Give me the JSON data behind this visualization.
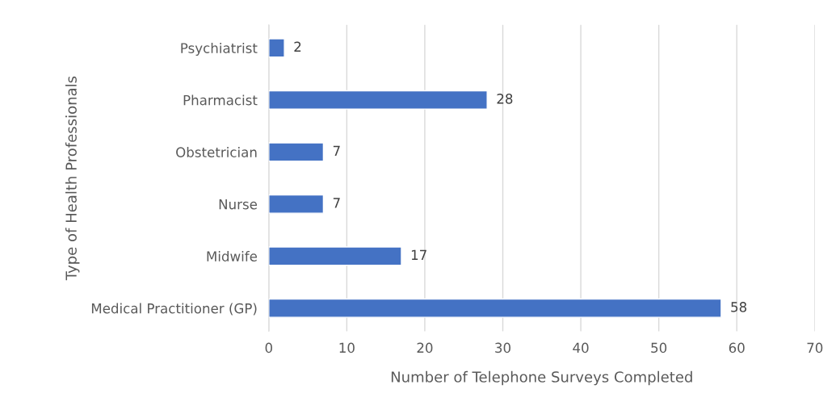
{
  "chart_data": {
    "type": "bar",
    "orientation": "horizontal",
    "xlabel": "Number of Telephone Surveys Completed",
    "ylabel": "Type of Health Professionals",
    "categories": [
      "Psychiatrist",
      "Pharmacist",
      "Obstetrician",
      "Nurse",
      "Midwife",
      "Medical Practitioner (GP)"
    ],
    "values": [
      2,
      28,
      7,
      7,
      17,
      58
    ],
    "color": "#4472c4",
    "xlim": [
      0,
      70
    ],
    "xticks": [
      0,
      10,
      20,
      30,
      40,
      50,
      60,
      70
    ],
    "grid": "x",
    "data_labels": true
  }
}
